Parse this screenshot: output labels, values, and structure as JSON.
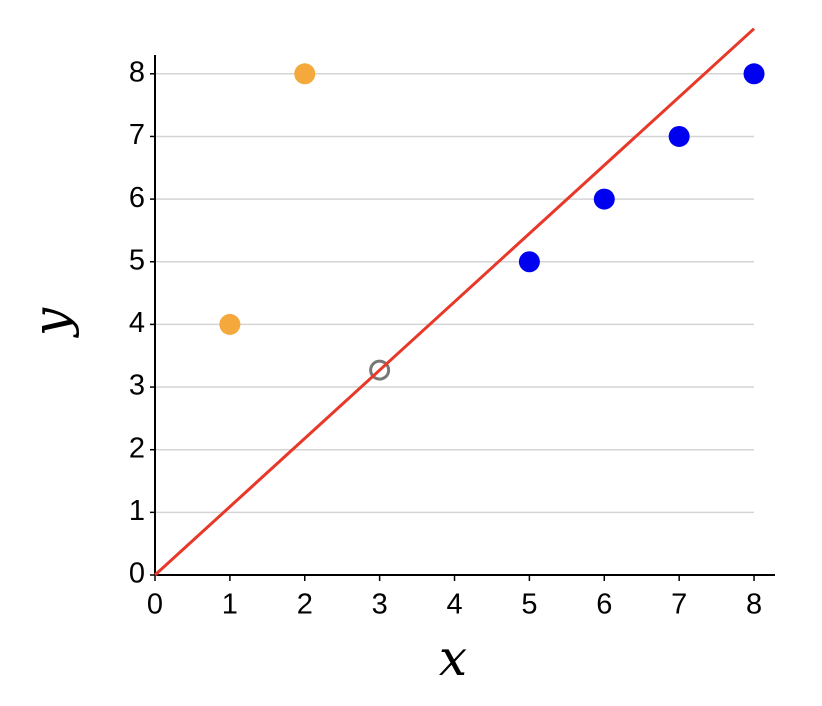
{
  "chart_data": {
    "type": "scatter",
    "xlabel": "x",
    "ylabel": "y",
    "xlim": [
      0,
      8.28
    ],
    "ylim": [
      0,
      8.3
    ],
    "xticks": [
      0,
      1,
      2,
      3,
      4,
      5,
      6,
      7,
      8
    ],
    "yticks": [
      0,
      1,
      2,
      3,
      4,
      5,
      6,
      7,
      8
    ],
    "grid": true,
    "series": [
      {
        "color": "#f5a83b",
        "x": [
          1,
          2
        ],
        "values": [
          4,
          8
        ]
      },
      {
        "color": "#0000f0",
        "x": [
          5,
          6,
          7,
          8
        ],
        "values": [
          5,
          6,
          7,
          8
        ]
      },
      {
        "color": "#777777",
        "x": [
          3
        ],
        "values": [
          3.27
        ],
        "marker": "hollow"
      },
      {
        "color": "#e8382a",
        "x": [
          0,
          8
        ],
        "values": [
          0,
          8.72
        ],
        "mode": "line"
      }
    ]
  }
}
